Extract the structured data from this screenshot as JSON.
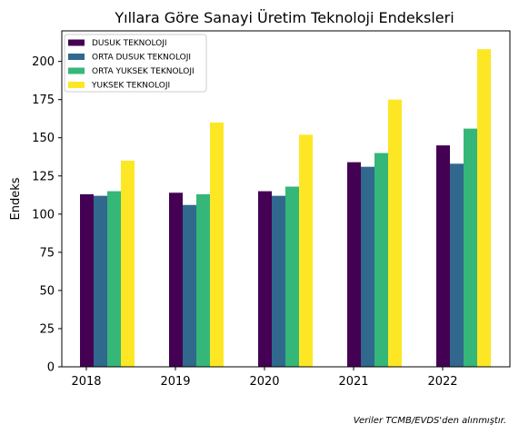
{
  "chart_data": {
    "type": "bar",
    "title": "Yıllara Göre Sanayi Üretim Teknoloji Endeksleri",
    "xlabel": "",
    "ylabel": "Endeks",
    "categories": [
      "2018",
      "2019",
      "2020",
      "2021",
      "2022"
    ],
    "series": [
      {
        "name": "DUSUK TEKNOLOJI",
        "color": "#440154",
        "values": [
          113,
          114,
          115,
          134,
          145
        ]
      },
      {
        "name": "ORTA DUSUK TEKNOLOJI",
        "color": "#31688e",
        "values": [
          112,
          106,
          112,
          131,
          133
        ]
      },
      {
        "name": "ORTA YUKSEK TEKNOLOJI",
        "color": "#35b779",
        "values": [
          115,
          113,
          118,
          140,
          156
        ]
      },
      {
        "name": "YUKSEK TEKNOLOJI",
        "color": "#fde725",
        "values": [
          135,
          160,
          152,
          175,
          208
        ]
      }
    ],
    "ylim": [
      0,
      220
    ],
    "yticks": [
      0,
      25,
      50,
      75,
      100,
      125,
      150,
      175,
      200
    ],
    "grid": false,
    "legend": "top-left",
    "note": "Veriler TCMB/EVDS'den alınmıştır."
  }
}
